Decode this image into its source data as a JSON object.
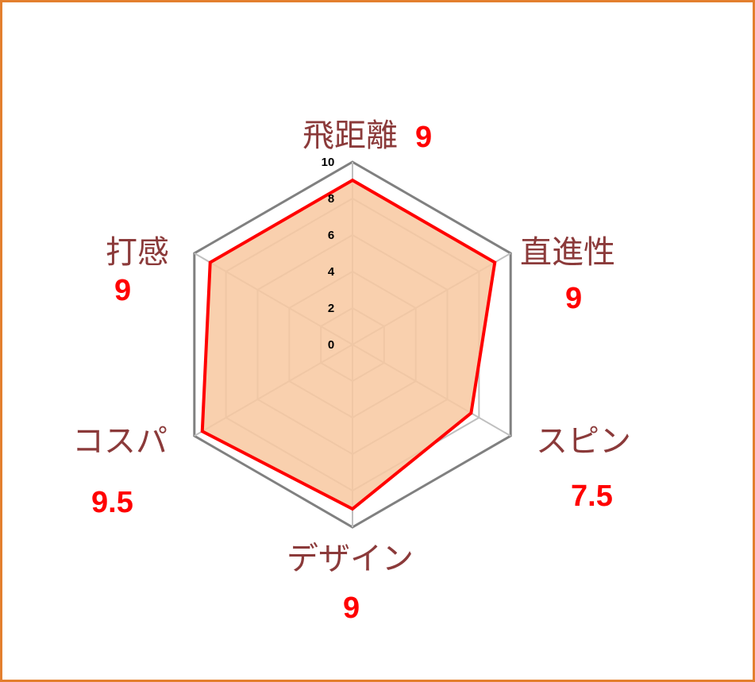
{
  "chart_data": {
    "type": "radar",
    "categories": [
      "飛距離",
      "直進性",
      "スピン",
      "デザイン",
      "コスパ",
      "打感"
    ],
    "values": [
      9,
      9,
      7.5,
      9,
      9.5,
      9
    ],
    "value_labels": [
      "9",
      "9",
      "7.5",
      "9",
      "9.5",
      "9"
    ],
    "ticks": [
      "0",
      "2",
      "4",
      "6",
      "8",
      "10"
    ],
    "rlim": [
      0,
      10
    ],
    "grid": true,
    "legend": "none"
  },
  "colors": {
    "frame_border": "#E37F2E",
    "series_line": "#FF0000",
    "series_fill": "#F8C8A0",
    "grid": "#BFBFBF",
    "outer_ring": "#808080",
    "category_text": "#8B3A3A",
    "value_text": "#FF0000"
  }
}
